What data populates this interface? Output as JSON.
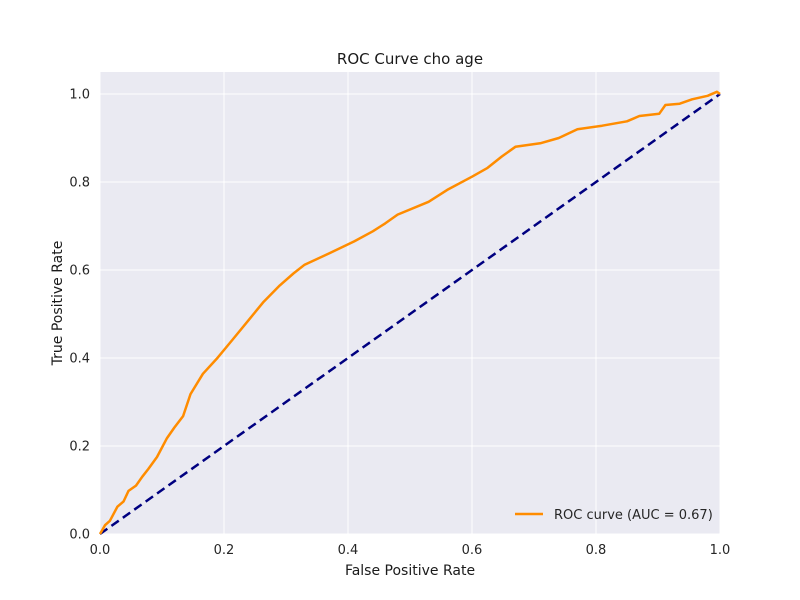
{
  "chart_data": {
    "type": "line",
    "title": "ROC Curve cho age",
    "xlabel": "False Positive Rate",
    "ylabel": "True Positive Rate",
    "xlim": [
      0.0,
      1.0
    ],
    "ylim": [
      0.0,
      1.05
    ],
    "x_ticks": [
      "0.0",
      "0.2",
      "0.4",
      "0.6",
      "0.8",
      "1.0"
    ],
    "y_ticks": [
      "0.0",
      "0.2",
      "0.4",
      "0.6",
      "0.8",
      "1.0"
    ],
    "grid": true,
    "legend_position": "bottom-right",
    "series": [
      {
        "name": "ROC curve (AUC = 0.67)",
        "color": "#ff8c00",
        "style": "solid",
        "x": [
          0.0,
          0.008,
          0.016,
          0.028,
          0.038,
          0.046,
          0.058,
          0.068,
          0.078,
          0.092,
          0.108,
          0.12,
          0.134,
          0.146,
          0.166,
          0.188,
          0.214,
          0.242,
          0.264,
          0.29,
          0.312,
          0.33,
          0.37,
          0.41,
          0.44,
          0.46,
          0.48,
          0.53,
          0.56,
          0.6,
          0.625,
          0.648,
          0.67,
          0.71,
          0.74,
          0.77,
          0.81,
          0.85,
          0.87,
          0.902,
          0.912,
          0.935,
          0.955,
          0.98,
          0.995,
          1.0
        ],
        "y": [
          0.0,
          0.02,
          0.03,
          0.062,
          0.074,
          0.098,
          0.11,
          0.13,
          0.148,
          0.175,
          0.218,
          0.242,
          0.268,
          0.318,
          0.364,
          0.398,
          0.442,
          0.49,
          0.528,
          0.565,
          0.592,
          0.612,
          0.638,
          0.665,
          0.688,
          0.706,
          0.726,
          0.755,
          0.782,
          0.812,
          0.832,
          0.858,
          0.88,
          0.888,
          0.9,
          0.92,
          0.928,
          0.938,
          0.95,
          0.955,
          0.975,
          0.978,
          0.988,
          0.996,
          1.005,
          1.0
        ]
      },
      {
        "color": "#000080",
        "style": "dashed",
        "x": [
          0.0,
          1.0
        ],
        "y": [
          0.0,
          1.0
        ]
      }
    ]
  },
  "colors": {
    "plot_background": "#eaeaf2",
    "grid": "#ffffff",
    "roc": "#ff8c00",
    "diagonal": "#000080"
  }
}
